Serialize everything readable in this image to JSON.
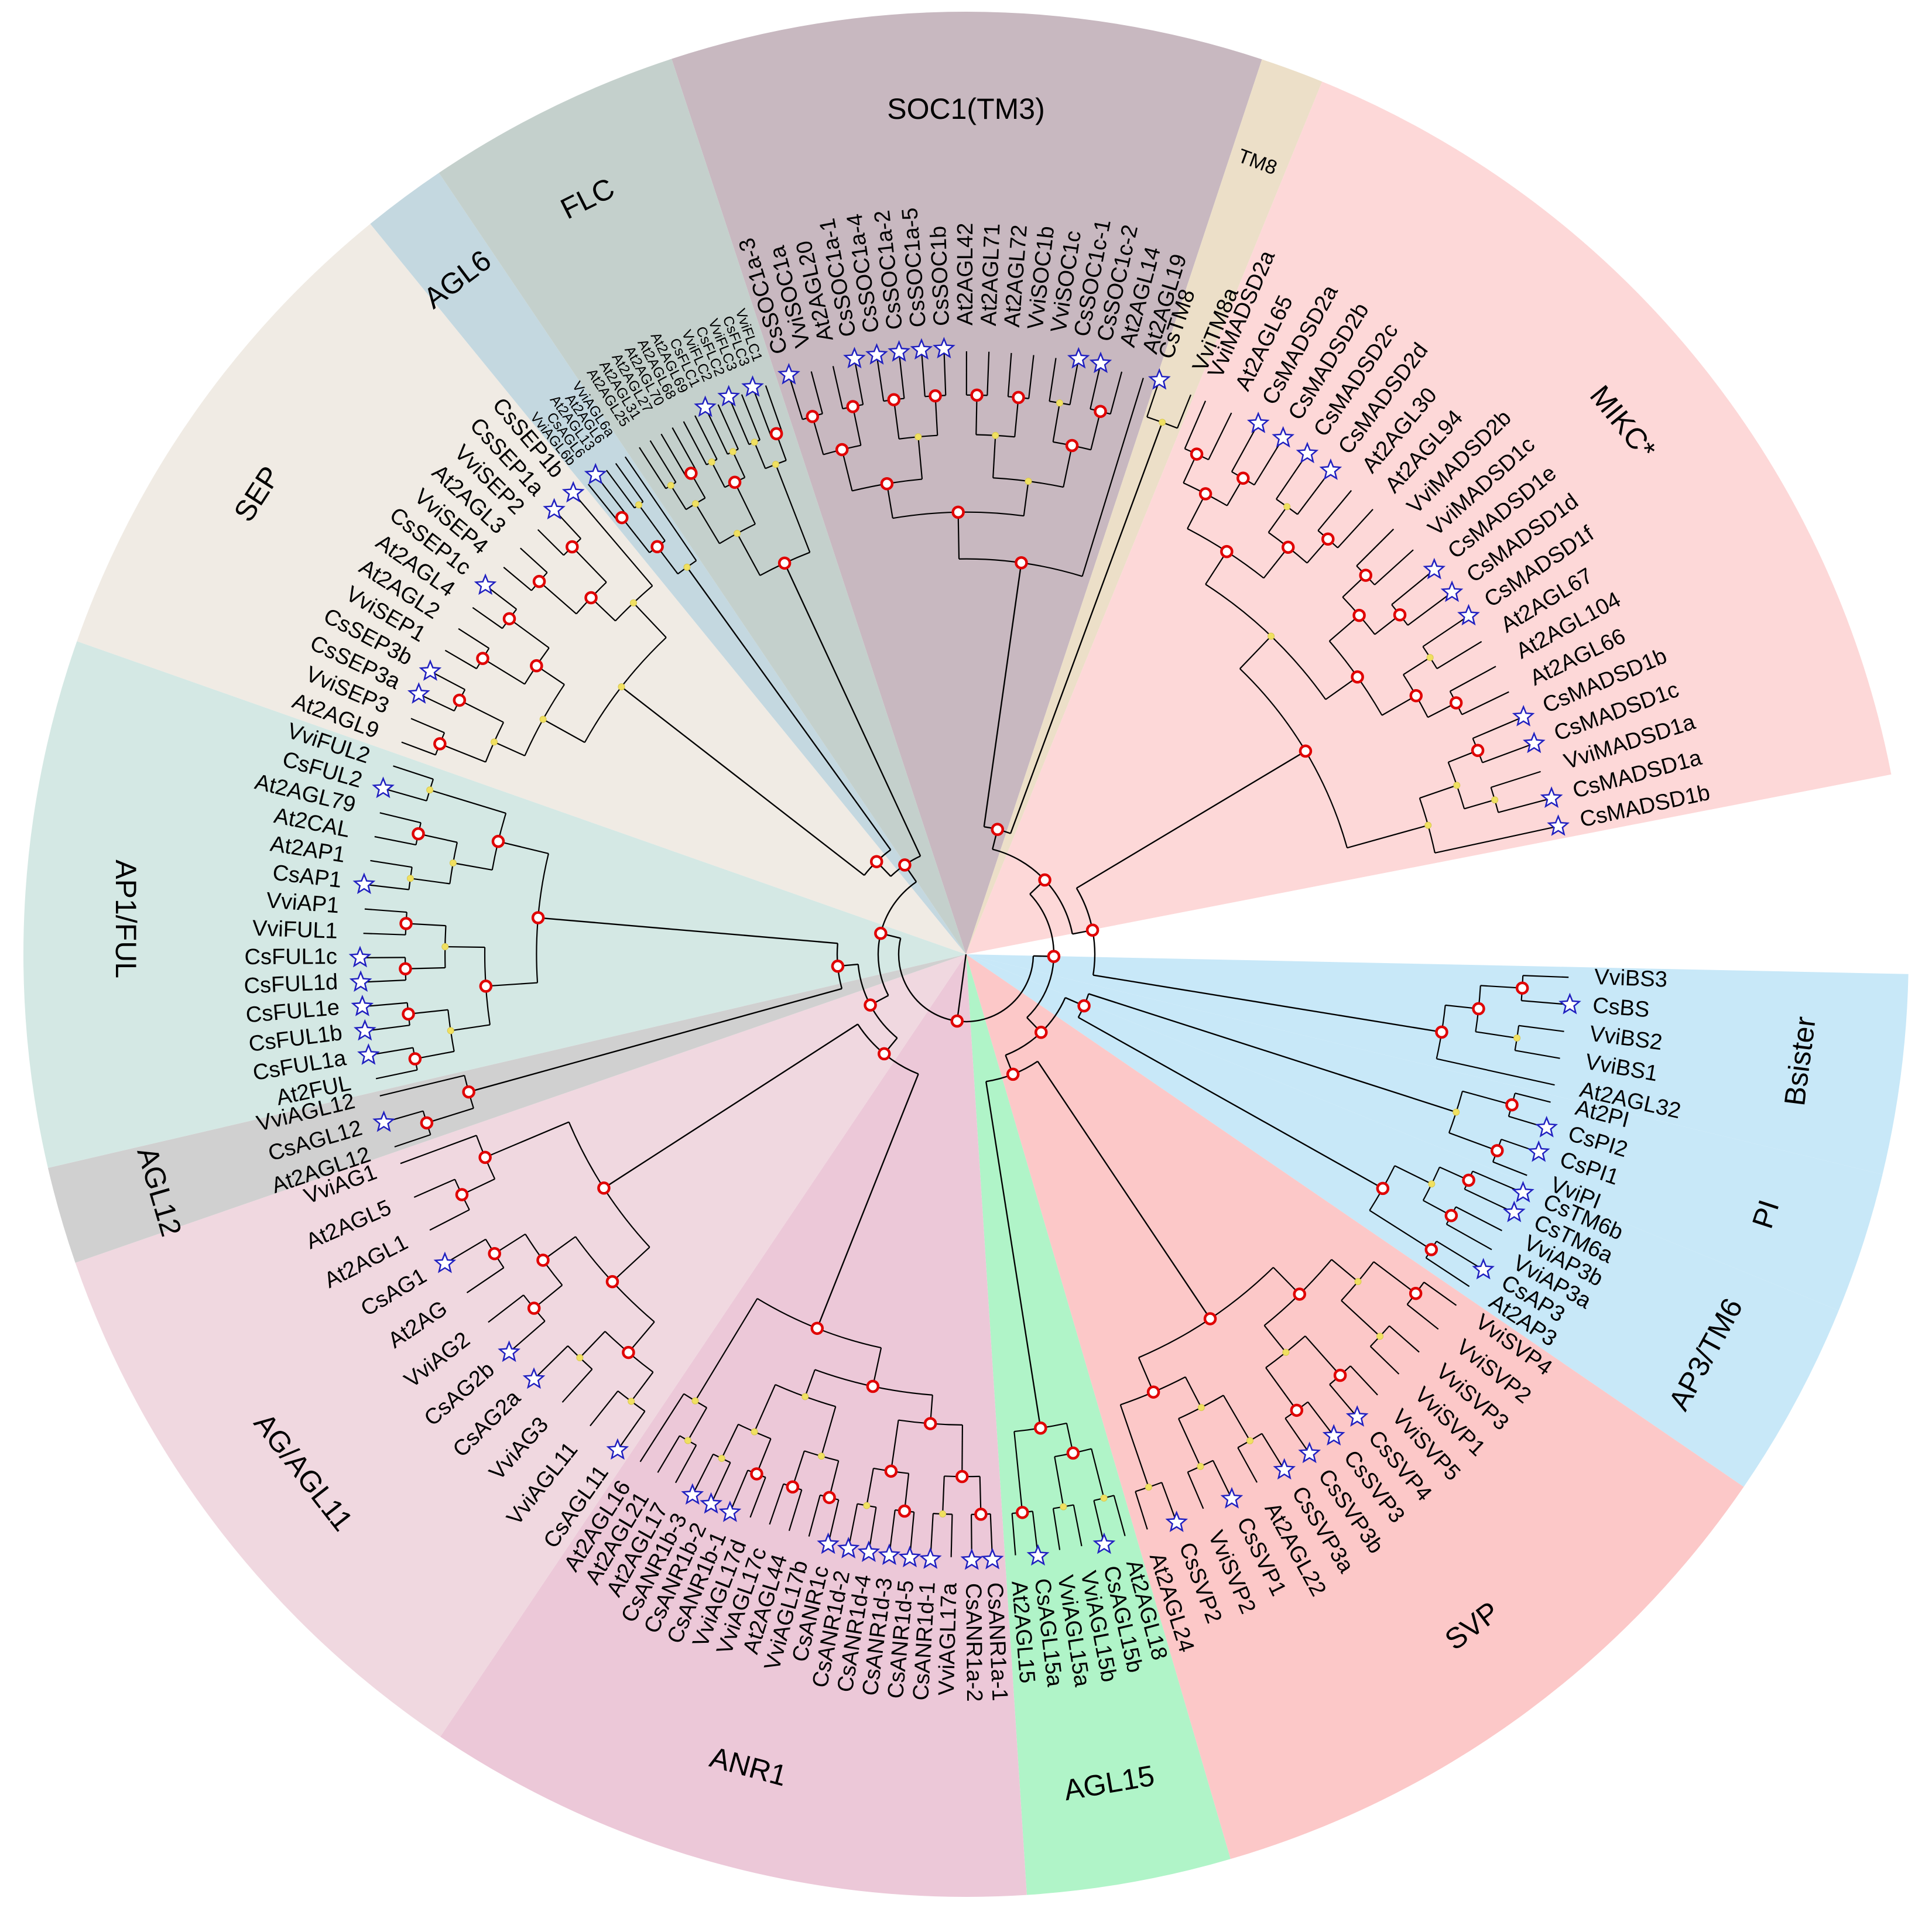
{
  "figure": "circular phylogenetic tree of MADS-box genes",
  "colors": {
    "soc1": "#c8b8c0",
    "tm8": "#ecdfc8",
    "mikc": "#fdd8d8",
    "bsister": "#c8e8f8",
    "pi": "#c8e8f8",
    "ap3": "#c8e8f8",
    "svp": "#fcc8c8",
    "agl15": "#b0f4c8",
    "anr1": "#ecc8d8",
    "agag11": "#f0d8e0",
    "agl12": "#d0d0d0",
    "ap1ful": "#d4e8e4",
    "sep": "#f0ebe4",
    "agl6": "#c4d8e0",
    "flc": "#c4d0cc",
    "branch": "#000000",
    "red_node": "#e00000",
    "yellow_node": "#f0e060",
    "star": "#2020c0"
  },
  "legend": {
    "red_node_meaning": "bootstrap marker (red circle)",
    "yellow_node_meaning": "bootstrap marker (yellow dot)",
    "star_icon": "star-icon"
  },
  "clades": [
    {
      "key": "soc1",
      "name": "SOC1(TM3)",
      "start": -18.2,
      "end": 18.3,
      "center": 0.0,
      "tips": [
        "CsSOC1a-3",
        "VviSOC1a",
        "At2AGL20",
        "CsSOC1a-1",
        "CsSOC1a-4",
        "CsSOC1a-2",
        "CsSOC1a-5",
        "CsSOC1b",
        "At2AGL42",
        "At2AGL71",
        "At2AGL72",
        "VviSOC1b",
        "VviSOC1c",
        "CsSOC1c-1",
        "CsSOC1c-2",
        "At2AGL14",
        "At2AGL19"
      ]
    },
    {
      "key": "tm8",
      "name": "TM8",
      "start": 18.3,
      "end": 22.2,
      "center": 20.2,
      "tips": [
        "CsTM8",
        "VviTM8a"
      ]
    },
    {
      "key": "mikc",
      "name": "MIKC*",
      "start": 22.2,
      "end": 79.0,
      "center": 51.0,
      "tips": [
        "VviMADSD2a",
        "At2AGL65",
        "CsMADSD2a",
        "CsMADSD2b",
        "CsMADSD2c",
        "CsMADSD2d",
        "At2AGL30",
        "At2AGL94",
        "VviMADSD2b",
        "VviMADSD1c",
        "CsMADSD1e",
        "CsMADSD1d",
        "CsMADSD1f",
        "At2AGL67",
        "At2AGL104",
        "At2AGL66",
        "CsMADSD1b",
        "CsMADSD1c",
        "VviMADSD1a",
        "CsMADSD1a",
        "CsMADSD1b"
      ]
    },
    {
      "key": "bsister",
      "name": "Bsister",
      "start": 91.2,
      "end": 103.5,
      "center": 97.3,
      "tips": [
        "VviBS3",
        "CsBS",
        "VviBS2",
        "VviBS1",
        "At2AGL32"
      ]
    },
    {
      "key": "pi",
      "name": "PI",
      "start": 103.5,
      "end": 112.2,
      "center": 108.0,
      "tips": [
        "At2PI",
        "CsPI2",
        "CsPI1",
        "VviPI"
      ]
    },
    {
      "key": "ap3",
      "name": "AP3/TM6",
      "start": 112.2,
      "end": 124.4,
      "center": 118.4,
      "tips": [
        "CsTM6b",
        "CsTM6a",
        "VviAP3b",
        "VviAP3a",
        "CsAP3",
        "At2AP3"
      ]
    },
    {
      "key": "svp",
      "name": "SVP",
      "start": 124.4,
      "end": 163.7,
      "center": 143.0,
      "tips": [
        "VviSVP4",
        "VviSVP2",
        "VviSVP3",
        "VviSVP1",
        "VviSVP5",
        "CsSVP4",
        "CsSVP3",
        "CsSVP3b",
        "CsSVP3a",
        "At2AGL22",
        "CsSVP1",
        "VviSVP2",
        "CsSVP2",
        "At2AGL24"
      ]
    },
    {
      "key": "agl15",
      "name": "AGL15",
      "start": 163.7,
      "end": 176.3,
      "center": 170.2,
      "tips": [
        "At2AGL18",
        "CsAGL15b",
        "VviAGL15b",
        "VviAGL15a",
        "CsAGL15a",
        "At2AGL15"
      ]
    },
    {
      "key": "anr1",
      "name": "ANR1",
      "start": 176.3,
      "end": 213.9,
      "center": 195.0,
      "tips": [
        "CsANR1a-1",
        "CsANR1a-2",
        "VviAGL17a",
        "CsANR1d-1",
        "CsANR1d-5",
        "CsANR1d-3",
        "CsANR1d-4",
        "CsANR1d-2",
        "CsANR1c",
        "VviAGL17b",
        "At2AGL44",
        "VviAGL17c",
        "VviAGL17d",
        "CsANR1b-1",
        "CsANR1b-2",
        "CsANR1b-3",
        "At2AGL17",
        "At2AGL21",
        "At2AGL16"
      ]
    },
    {
      "key": "agag11",
      "name": "AG/AGL11",
      "start": 213.9,
      "end": 250.9,
      "center": 232.0,
      "tips": [
        "CsAGL11",
        "VviAGL11",
        "VviAG3",
        "CsAG2a",
        "CsAG2b",
        "VviAG2",
        "At2AG",
        "CsAG1",
        "At2AGL1",
        "At2AGL5",
        "VviAG1"
      ]
    },
    {
      "key": "agl12",
      "name": "AGL12",
      "start": 250.9,
      "end": 256.9,
      "center": 253.6,
      "tips": [
        "At2AGL12",
        "CsAGL12",
        "VviAGL12"
      ]
    },
    {
      "key": "ap1ful",
      "name": "AP1/FUL",
      "start": 256.9,
      "end": 289.4,
      "center": 272.4,
      "tips": [
        "At2FUL",
        "CsFUL1a",
        "CsFUL1b",
        "CsFUL1e",
        "CsFUL1d",
        "CsFUL1c",
        "VviFUL1",
        "VviAP1",
        "CsAP1",
        "At2AP1",
        "At2CAL",
        "At2AGL79",
        "CsFUL2",
        "VviFUL2"
      ]
    },
    {
      "key": "sep",
      "name": "SEP",
      "start": 289.4,
      "end": 320.8,
      "center": 303.0,
      "tips": [
        "At2AGL9",
        "VviSEP3",
        "CsSEP3a",
        "CsSEP3b",
        "VviSEP1",
        "At2AGL2",
        "At2AGL4",
        "CsSEP1c",
        "VviSEP4",
        "At2AGL3",
        "VviSEP2",
        "CsSEP1a",
        "CsSEP1b"
      ]
    },
    {
      "key": "agl6",
      "name": "AGL6",
      "start": 320.8,
      "end": 326.0,
      "center": 323.0,
      "tips": [
        "VviAGL6b",
        "CsAGL6",
        "At2AGL13",
        "At2AGL6",
        "VviAGL6a"
      ]
    },
    {
      "key": "flc",
      "name": "FLC",
      "start": 326.0,
      "end": 341.8,
      "center": 333.4,
      "tips": [
        "At2AGL25",
        "At2AGL31",
        "At2AGL27",
        "At2AGL70",
        "At2AGL68",
        "At2AGL69",
        "CsFLC1",
        "VviFLC2",
        "CsFLC2",
        "VviFLC3",
        "CsFLC3",
        "VviFLC1"
      ]
    }
  ]
}
